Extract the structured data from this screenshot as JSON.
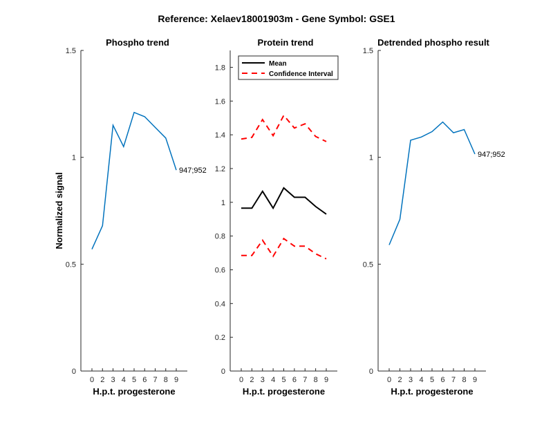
{
  "figure_title": "Reference:  Xelaev18001903m - Gene Symbol:  GSE1",
  "chart_data": [
    {
      "type": "line",
      "title": "Phospho trend",
      "xlabel": "H.p.t. progesterone",
      "ylabel": "Normalized signal",
      "categories": [
        "0",
        "2",
        "3",
        "4",
        "5",
        "6",
        "7",
        "8",
        "9"
      ],
      "ylim": [
        0,
        1.5
      ],
      "yticks": [
        "0",
        "0.5",
        "1",
        "1.5"
      ],
      "series": [
        {
          "name": "947;952",
          "color": "#0072bd",
          "style": "solid",
          "values": [
            0.57,
            0.68,
            1.15,
            1.05,
            1.21,
            1.19,
            1.14,
            1.09,
            0.94
          ]
        }
      ],
      "annotation": "947;952"
    },
    {
      "type": "line",
      "title": "Protein trend",
      "xlabel": "H.p.t. progesterone",
      "ylabel": "",
      "categories": [
        "0",
        "2",
        "3",
        "4",
        "5",
        "6",
        "7",
        "8",
        "9"
      ],
      "ylim": [
        0,
        1.9
      ],
      "yticks": [
        "0",
        "0.2",
        "0.4",
        "0.6",
        "0.8",
        "1",
        "1.2",
        "1.4",
        "1.6",
        "1.8"
      ],
      "legend": [
        "Mean",
        "Confidence Interval"
      ],
      "series": [
        {
          "name": "Mean",
          "color": "#000000",
          "style": "solid",
          "values": [
            0.965,
            0.965,
            1.065,
            0.965,
            1.085,
            1.03,
            1.03,
            0.975,
            0.93
          ]
        },
        {
          "name": "Confidence Interval",
          "color": "#ff0000",
          "style": "dashed",
          "values": [
            1.375,
            1.385,
            1.49,
            1.395,
            1.515,
            1.44,
            1.465,
            1.39,
            1.36
          ]
        },
        {
          "name": "Confidence Interval (lower)",
          "color": "#ff0000",
          "style": "dashed",
          "values": [
            0.685,
            0.685,
            0.775,
            0.68,
            0.785,
            0.74,
            0.74,
            0.695,
            0.665
          ]
        }
      ]
    },
    {
      "type": "line",
      "title": "Detrended phospho result",
      "xlabel": "H.p.t. progesterone",
      "ylabel": "",
      "categories": [
        "0",
        "2",
        "3",
        "4",
        "5",
        "6",
        "7",
        "8",
        "9"
      ],
      "ylim": [
        0,
        1.5
      ],
      "yticks": [
        "0",
        "0.5",
        "1",
        "1.5"
      ],
      "series": [
        {
          "name": "947;952",
          "color": "#0072bd",
          "style": "solid",
          "values": [
            0.59,
            0.71,
            1.08,
            1.095,
            1.12,
            1.165,
            1.115,
            1.13,
            1.015
          ]
        }
      ],
      "annotation": "947;952"
    }
  ]
}
